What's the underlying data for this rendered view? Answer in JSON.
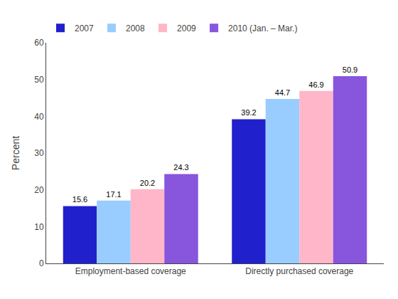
{
  "chart_data": {
    "type": "bar",
    "ylabel": "Percent",
    "categories": [
      "Employment-based coverage",
      "Directly purchased coverage"
    ],
    "series": [
      {
        "name": "2007",
        "color": "#2020CC",
        "values": [
          15.6,
          39.2
        ]
      },
      {
        "name": "2008",
        "color": "#99CCFF",
        "values": [
          17.1,
          44.7
        ]
      },
      {
        "name": "2009",
        "color": "#FFB6C8",
        "values": [
          20.2,
          46.9
        ]
      },
      {
        "name": "2010 (Jan. – Mar.)",
        "color": "#8855DD",
        "values": [
          24.3,
          50.9
        ]
      }
    ],
    "ylim": [
      0,
      60
    ],
    "yticks": [
      0,
      10,
      20,
      30,
      40,
      50,
      60
    ],
    "grid": false,
    "data_labels": true,
    "legend": "top"
  }
}
